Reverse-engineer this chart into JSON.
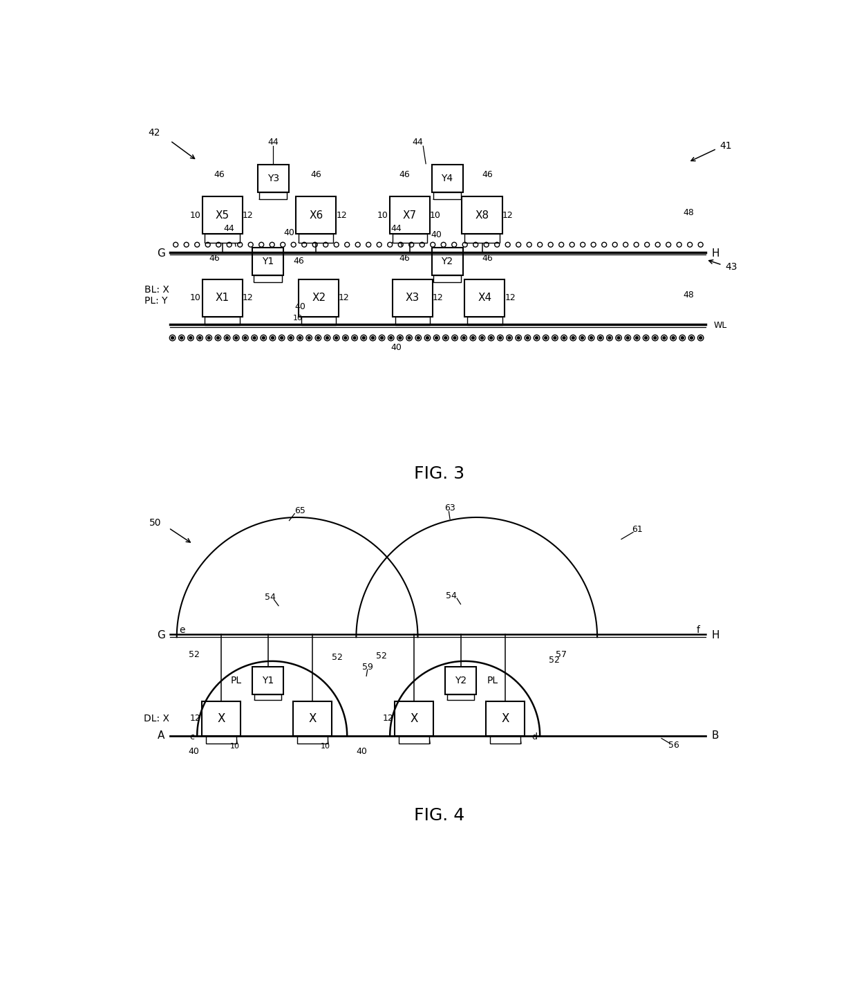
{
  "fig_width": 12.4,
  "fig_height": 14.27,
  "bg_color": "#ffffff",
  "line_color": "#000000",
  "fig3_caption": "FIG. 3",
  "fig4_caption": "FIG. 4",
  "cell_labels_top": [
    "X5",
    "X6",
    "X7",
    "X8"
  ],
  "cell_labels_bot": [
    "X1",
    "X2",
    "X3",
    "X4"
  ],
  "pl_labels_top": [
    "Y3",
    "Y4"
  ],
  "pl_labels_bot": [
    "Y1",
    "Y2"
  ],
  "cell_labels_fig4": [
    "X",
    "X",
    "X",
    "X"
  ],
  "pl_labels_fig4": [
    "Y1",
    "Y2"
  ]
}
